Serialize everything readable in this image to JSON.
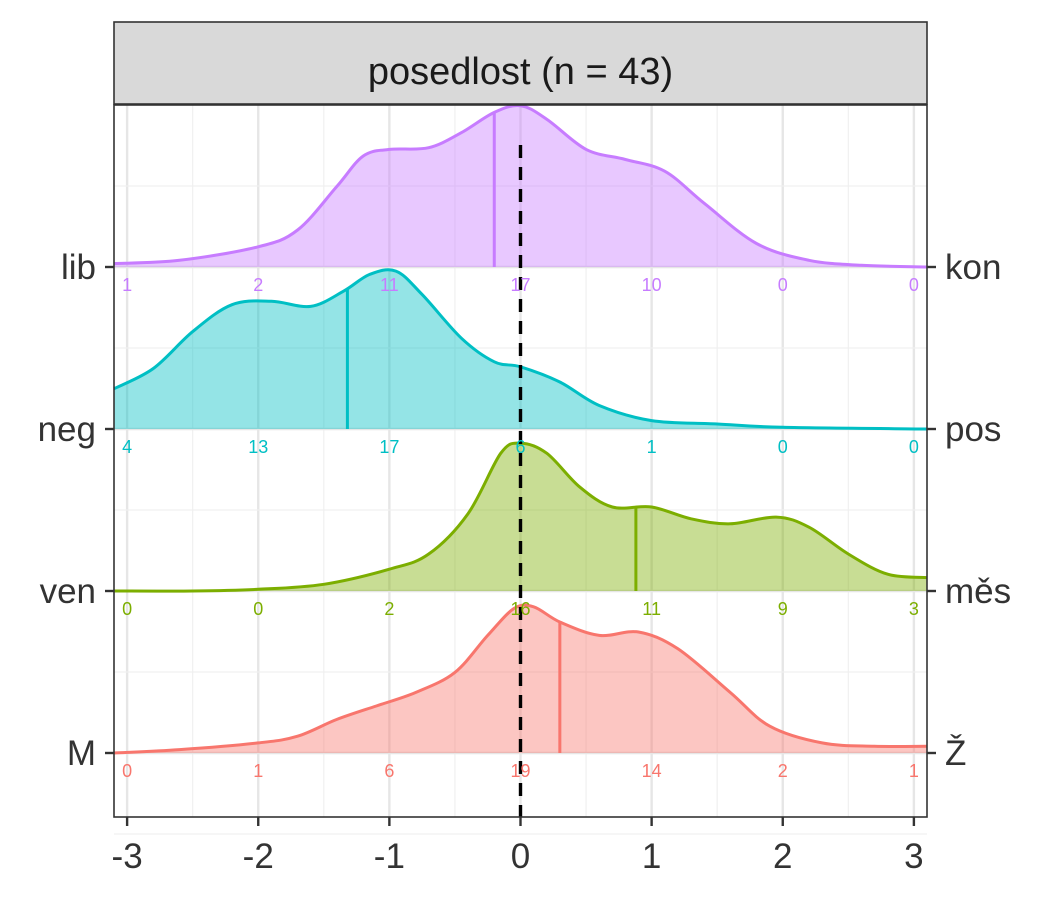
{
  "chart_data": {
    "type": "area",
    "title": "posedlost (n = 43)",
    "xlim": [
      -3.1,
      3.1
    ],
    "x_ticks": [
      -3,
      -2,
      -1,
      0,
      1,
      2,
      3
    ],
    "x_tick_labels": [
      "-3",
      "-2",
      "-1",
      "0",
      "1",
      "2",
      "3"
    ],
    "count_positions": [
      -3,
      -2,
      -1,
      0,
      1,
      2,
      3
    ],
    "reference_line_x": 0,
    "grid": true,
    "series": [
      {
        "left_label": "lib",
        "right_label": "kon",
        "color": "#C77CFF",
        "mean": -0.2,
        "counts": [
          "1",
          "2",
          "11",
          "17",
          "10",
          "0",
          "0"
        ],
        "density": [
          [
            -3.1,
            0.02
          ],
          [
            -2.6,
            0.04
          ],
          [
            -2,
            0.12
          ],
          [
            -1.7,
            0.22
          ],
          [
            -1.4,
            0.48
          ],
          [
            -1.2,
            0.66
          ],
          [
            -1,
            0.7
          ],
          [
            -0.7,
            0.71
          ],
          [
            -0.45,
            0.8
          ],
          [
            -0.2,
            0.92
          ],
          [
            0,
            0.96
          ],
          [
            0.2,
            0.88
          ],
          [
            0.5,
            0.7
          ],
          [
            0.8,
            0.64
          ],
          [
            1.1,
            0.57
          ],
          [
            1.4,
            0.38
          ],
          [
            1.8,
            0.14
          ],
          [
            2.2,
            0.04
          ],
          [
            2.6,
            0.01
          ],
          [
            3.1,
            0.0
          ]
        ]
      },
      {
        "left_label": "neg",
        "right_label": "pos",
        "color": "#00BFC4",
        "mean": -1.32,
        "counts": [
          "4",
          "13",
          "17",
          "6",
          "1",
          "0",
          "0"
        ],
        "density": [
          [
            -3.1,
            0.24
          ],
          [
            -2.8,
            0.36
          ],
          [
            -2.5,
            0.58
          ],
          [
            -2.2,
            0.74
          ],
          [
            -1.9,
            0.76
          ],
          [
            -1.6,
            0.73
          ],
          [
            -1.35,
            0.82
          ],
          [
            -1.15,
            0.92
          ],
          [
            -0.95,
            0.94
          ],
          [
            -0.75,
            0.8
          ],
          [
            -0.45,
            0.54
          ],
          [
            -0.2,
            0.4
          ],
          [
            0,
            0.37
          ],
          [
            0.3,
            0.28
          ],
          [
            0.6,
            0.14
          ],
          [
            1,
            0.05
          ],
          [
            1.5,
            0.03
          ],
          [
            2,
            0.01
          ],
          [
            3.1,
            0.0
          ]
        ]
      },
      {
        "left_label": "ven",
        "right_label": "měs",
        "color": "#7CAE00",
        "mean": 0.88,
        "counts": [
          "0",
          "0",
          "2",
          "16",
          "11",
          "9",
          "3"
        ],
        "density": [
          [
            -3.1,
            0.0
          ],
          [
            -2.5,
            0.0
          ],
          [
            -2,
            0.01
          ],
          [
            -1.5,
            0.04
          ],
          [
            -1,
            0.13
          ],
          [
            -0.7,
            0.22
          ],
          [
            -0.4,
            0.46
          ],
          [
            -0.15,
            0.82
          ],
          [
            0,
            0.88
          ],
          [
            0.2,
            0.82
          ],
          [
            0.45,
            0.62
          ],
          [
            0.7,
            0.5
          ],
          [
            1,
            0.5
          ],
          [
            1.3,
            0.43
          ],
          [
            1.6,
            0.4
          ],
          [
            1.95,
            0.44
          ],
          [
            2.2,
            0.38
          ],
          [
            2.5,
            0.22
          ],
          [
            2.8,
            0.1
          ],
          [
            3.1,
            0.08
          ]
        ]
      },
      {
        "left_label": "M",
        "right_label": "Ž",
        "color": "#F8766D",
        "mean": 0.3,
        "counts": [
          "0",
          "1",
          "6",
          "19",
          "14",
          "2",
          "1"
        ],
        "density": [
          [
            -3.1,
            0.0
          ],
          [
            -2.6,
            0.02
          ],
          [
            -2,
            0.06
          ],
          [
            -1.7,
            0.1
          ],
          [
            -1.4,
            0.2
          ],
          [
            -1.1,
            0.28
          ],
          [
            -0.8,
            0.36
          ],
          [
            -0.5,
            0.48
          ],
          [
            -0.25,
            0.7
          ],
          [
            -0.05,
            0.86
          ],
          [
            0.1,
            0.87
          ],
          [
            0.3,
            0.78
          ],
          [
            0.6,
            0.7
          ],
          [
            0.9,
            0.72
          ],
          [
            1.2,
            0.62
          ],
          [
            1.6,
            0.36
          ],
          [
            1.9,
            0.16
          ],
          [
            2.3,
            0.06
          ],
          [
            2.7,
            0.04
          ],
          [
            3.1,
            0.04
          ]
        ]
      }
    ]
  }
}
